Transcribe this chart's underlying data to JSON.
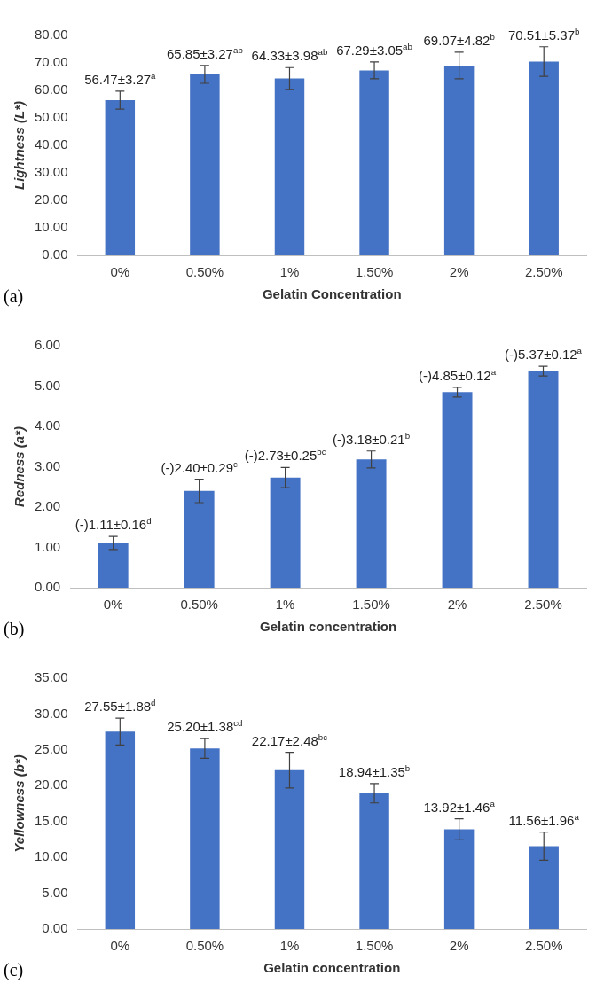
{
  "chart_data": [
    {
      "type": "bar",
      "ylabel": "Lightness (L*)",
      "xlabel": "Gelatin Concentration",
      "categories": [
        "0%",
        "0.50%",
        "1%",
        "1.50%",
        "2%",
        "2.50%"
      ],
      "values": [
        56.47,
        65.85,
        64.33,
        67.29,
        69.07,
        70.51
      ],
      "errors": [
        3.27,
        3.27,
        3.98,
        3.05,
        4.82,
        5.37
      ],
      "value_labels": [
        "56.47±3.27$^{a}$",
        "65.85±3.27$^{ab}$",
        "64.33±3.98$^{ab}$",
        "67.29±3.05$^{ab}$",
        "69.07±4.82$^{b}$",
        "70.51±5.37$^{b}$"
      ],
      "color": "#4472c4",
      "ylim": [
        0,
        80
      ],
      "yticks": [
        {
          "value": 0,
          "label": "0.00"
        },
        {
          "value": 10,
          "label": "10.00"
        },
        {
          "value": 20,
          "label": "20.00"
        },
        {
          "value": 30,
          "label": "30.00"
        },
        {
          "value": 40,
          "label": "40.00"
        },
        {
          "value": 50,
          "label": "50.00"
        },
        {
          "value": 60,
          "label": "60.00"
        },
        {
          "value": 70,
          "label": "70.00"
        },
        {
          "value": 80,
          "label": "80.00"
        }
      ],
      "grid": false,
      "legend": false,
      "annotations": [
        "(a)"
      ]
    },
    {
      "type": "bar",
      "ylabel": "Redness (a*)",
      "xlabel": "Gelatin concentration",
      "categories": [
        "0%",
        "0.50%",
        "1%",
        "1.50%",
        "2%",
        "2.50%"
      ],
      "values": [
        1.11,
        2.4,
        2.73,
        3.18,
        4.85,
        5.37
      ],
      "errors": [
        0.16,
        0.29,
        0.25,
        0.21,
        0.12,
        0.12
      ],
      "value_labels": [
        "(-)1.11±0.16$^{d}$",
        "(-)2.40±0.29$^{c}$",
        "(-)2.73±0.25$^{bc}$",
        "(-)3.18±0.21$^{b}$",
        "(-)4.85±0.12$^{a}$",
        "(-)5.37±0.12$^{a}$"
      ],
      "color": "#4472c4",
      "ylim": [
        0,
        6
      ],
      "yticks": [
        {
          "value": 0,
          "label": "0.00"
        },
        {
          "value": 1,
          "label": "1.00"
        },
        {
          "value": 2,
          "label": "2.00"
        },
        {
          "value": 3,
          "label": "3.00"
        },
        {
          "value": 4,
          "label": "4.00"
        },
        {
          "value": 5,
          "label": "5.00"
        },
        {
          "value": 6,
          "label": "6.00"
        }
      ],
      "grid": false,
      "legend": false,
      "annotations": [
        "(b)"
      ]
    },
    {
      "type": "bar",
      "ylabel": "Yellowness (b*)",
      "xlabel": "Gelatin concentration",
      "categories": [
        "0%",
        "0.50%",
        "1%",
        "1.50%",
        "2%",
        "2.50%"
      ],
      "values": [
        27.55,
        25.2,
        22.17,
        18.94,
        13.92,
        11.56
      ],
      "errors": [
        1.88,
        1.38,
        2.48,
        1.35,
        1.46,
        1.96
      ],
      "value_labels": [
        "27.55±1.88$^{d}$",
        "25.20±1.38$^{cd}$",
        "22.17±2.48$^{bc}$",
        "18.94±1.35$^{b}$",
        "13.92±1.46$^{a}$",
        "11.56±1.96$^{a}$"
      ],
      "color": "#4472c4",
      "ylim": [
        0,
        35
      ],
      "yticks": [
        {
          "value": 0,
          "label": "0.00"
        },
        {
          "value": 5,
          "label": "5.00"
        },
        {
          "value": 10,
          "label": "10.00"
        },
        {
          "value": 15,
          "label": "15.00"
        },
        {
          "value": 20,
          "label": "20.00"
        },
        {
          "value": 25,
          "label": "25.00"
        },
        {
          "value": 30,
          "label": "30.00"
        },
        {
          "value": 35,
          "label": "35.00"
        }
      ],
      "grid": false,
      "legend": false,
      "annotations": [
        "(c)"
      ]
    }
  ]
}
